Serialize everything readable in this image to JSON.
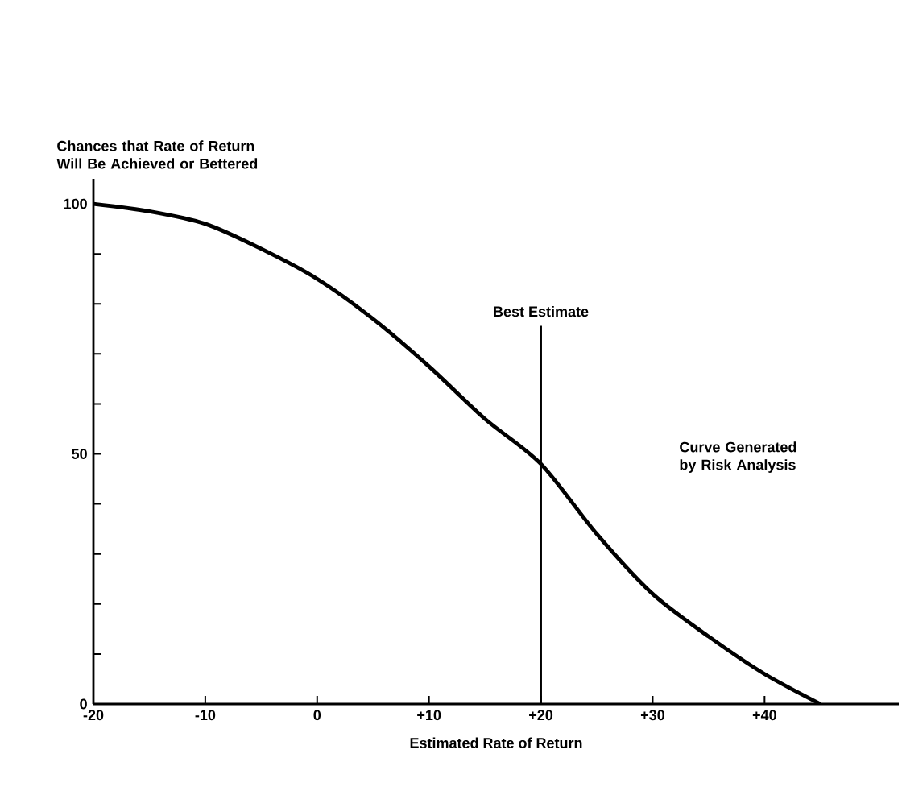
{
  "chart_data": {
    "type": "line",
    "ylabel": "Chances that Rate of Return Will Be Achieved or Bettered",
    "xlabel": "Estimated Rate of Return",
    "x": [
      -20,
      -15,
      -10,
      -5,
      0,
      5,
      10,
      15,
      20,
      25,
      30,
      35,
      40,
      45
    ],
    "series": [
      {
        "color": "#000000",
        "values": [
          100,
          98.5,
          96,
          91,
          85,
          77,
          67.5,
          57,
          48,
          34,
          22,
          13.5,
          6,
          0
        ]
      }
    ],
    "xlim": [
      -20,
      52
    ],
    "ylim": [
      0,
      105
    ],
    "xticks": [
      {
        "value": -20,
        "label": "-20"
      },
      {
        "value": -10,
        "label": "-10"
      },
      0,
      {
        "value": 10,
        "label": "+10"
      },
      {
        "value": 20,
        "label": "+20"
      },
      {
        "value": 30,
        "label": "+30"
      },
      {
        "value": 40,
        "label": "+40"
      }
    ],
    "yticks": [
      0,
      {
        "value": 10,
        "label": null
      },
      {
        "value": 20,
        "label": null
      },
      {
        "value": 30,
        "label": null
      },
      {
        "value": 40,
        "label": null
      },
      50,
      {
        "value": 60,
        "label": null
      },
      {
        "value": 70,
        "label": null
      },
      {
        "value": 80,
        "label": null
      },
      {
        "value": 90,
        "label": null
      },
      100
    ],
    "ref_lines": [
      {
        "axis": "x",
        "value": 20,
        "label": "Best Estimate",
        "color": "#000000"
      }
    ],
    "annotations": [
      "Curve Generated by Risk Analysis"
    ],
    "grid": false,
    "marker": "none",
    "line_style": "solid"
  }
}
